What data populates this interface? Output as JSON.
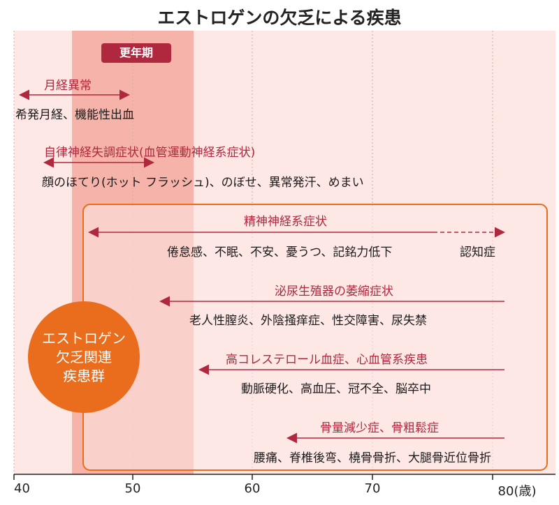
{
  "title": "エストロゲンの欠乏による疾患",
  "menopause_label": "更年期",
  "axis": {
    "ticks": [
      "40",
      "50",
      "60",
      "70",
      "80(歳)"
    ],
    "unit": "歳"
  },
  "rows": [
    {
      "category": "月経異常",
      "description": "希発月経、機能性出血"
    },
    {
      "category": "自律神経失調症状(血管運動神経系症状)",
      "description": "顔のほてり(ホット フラッシュ)、のぼせ、異常発汗、めまい"
    },
    {
      "category": "精神神経系症状",
      "description": "倦怠感、不眠、不安、憂うつ、記銘力低下",
      "description_late": "認知症"
    },
    {
      "category": "泌尿生殖器の萎縮症状",
      "description": "老人性膣炎、外陰掻痒症、性交障害、尿失禁"
    },
    {
      "category": "高コレステロール血症、心血管系疾患",
      "description": "動脈硬化、高血圧、冠不全、脳卒中"
    },
    {
      "category": "骨量減少症、骨粗鬆症",
      "description": "腰痛、脊椎後弯、橈骨骨折、大腿骨近位骨折"
    }
  ],
  "group_label": "エストロゲン\n欠乏関連\n疾患群",
  "colors": {
    "accent": "#b0283e",
    "orange": "#e96d1c",
    "bg": "#fde8e6",
    "menopause": "#f5b3aa"
  }
}
